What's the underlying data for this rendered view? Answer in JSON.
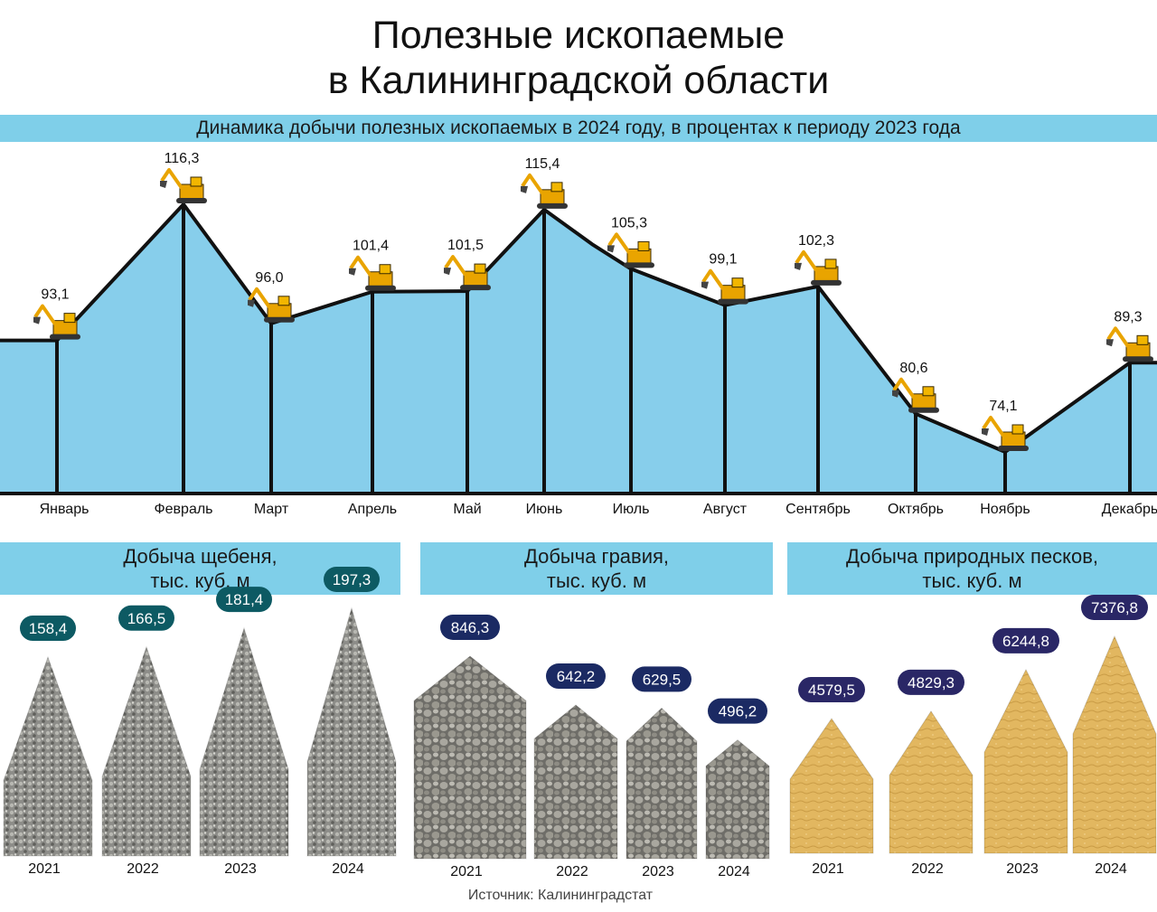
{
  "title_line1": "Полезные ископаемые",
  "title_line2": "в Калининградской области",
  "subtitle": "Динамика добычи полезных ископаемых в 2024 году, в процентах к периоду 2023 года",
  "source": "Источник: Калининградстат",
  "colors": {
    "band": "#7fcfe9",
    "area": "#87ceeb",
    "crushed_stone_badge": "#0d5a63",
    "gravel_badge": "#1b2a63",
    "sand_badge": "#2a2766",
    "sand": "#e2b760",
    "stone": "#8d8d8a"
  },
  "chart_data": [
    {
      "type": "area",
      "title": "Динамика добычи полезных ископаемых в 2024 году, в процентах к периоду 2023 года",
      "categories": [
        "Январь",
        "Февраль",
        "Март",
        "Апрель",
        "Май",
        "Июнь",
        "Июль",
        "Август",
        "Сентябрь",
        "Октябрь",
        "Ноябрь",
        "Декабрь"
      ],
      "values": [
        93.1,
        116.3,
        96.0,
        101.4,
        101.5,
        115.4,
        105.3,
        99.1,
        102.3,
        80.6,
        74.1,
        89.3
      ],
      "value_labels": [
        "93,1",
        "116,3",
        "96,0",
        "101,4",
        "101,5",
        "115,4",
        "105,3",
        "99,1",
        "102,3",
        "80,6",
        "74,1",
        "89,3"
      ],
      "icon": "excavator-icon"
    },
    {
      "type": "bar",
      "title": "Добыча щебеня, тыс. куб. м",
      "categories": [
        "2021",
        "2022",
        "2023",
        "2024"
      ],
      "values": [
        158.4,
        166.5,
        181.4,
        197.3
      ],
      "value_labels": [
        "158,4",
        "166,5",
        "181,4",
        "197,3"
      ]
    },
    {
      "type": "bar",
      "title": "Добыча гравия, тыс. куб. м",
      "categories": [
        "2021",
        "2022",
        "2023",
        "2024"
      ],
      "values": [
        846.3,
        642.2,
        629.5,
        496.2
      ],
      "value_labels": [
        "846,3",
        "642,2",
        "629,5",
        "496,2"
      ]
    },
    {
      "type": "bar",
      "title": "Добыча природных песков, тыс. куб. м",
      "categories": [
        "2021",
        "2022",
        "2023",
        "2024"
      ],
      "values": [
        4579.5,
        4829.3,
        6244.8,
        7376.8
      ],
      "value_labels": [
        "4579,5",
        "4829,3",
        "6244,8",
        "7376,8"
      ]
    }
  ]
}
